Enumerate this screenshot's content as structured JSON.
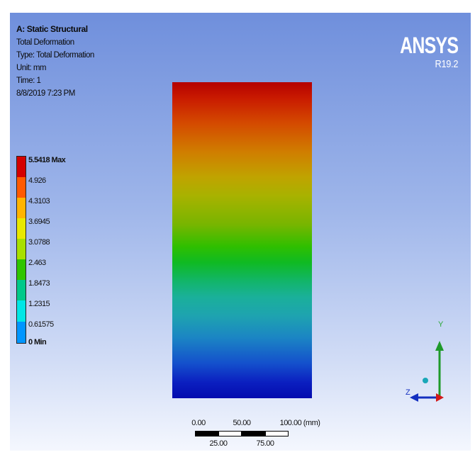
{
  "header": {
    "analysis_title": "A: Static Structural",
    "result_name": "Total Deformation",
    "type_line": "Type: Total Deformation",
    "unit_line": "Unit: mm",
    "time_line": "Time: 1",
    "timestamp": "8/8/2019 7:23 PM"
  },
  "brand": {
    "name": "ANSYS",
    "version": "R19.2"
  },
  "legend": {
    "labels": [
      "5.5418 Max",
      "4.926",
      "4.3103",
      "3.6945",
      "3.0788",
      "2.463",
      "1.8473",
      "1.2315",
      "0.61575",
      "0 Min"
    ],
    "colors": [
      "#d40000",
      "#ff5a00",
      "#ffb400",
      "#e8e800",
      "#a8e000",
      "#2fc500",
      "#00c98a",
      "#00e6e6",
      "#0096ff",
      "#0000e6"
    ]
  },
  "scale_bar": {
    "top_labels": [
      "0.00",
      "50.00",
      "100.00 (mm)"
    ],
    "bottom_labels": [
      "25.00",
      "75.00"
    ]
  },
  "triad": {
    "y_label": "Y",
    "z_label": "Z"
  }
}
